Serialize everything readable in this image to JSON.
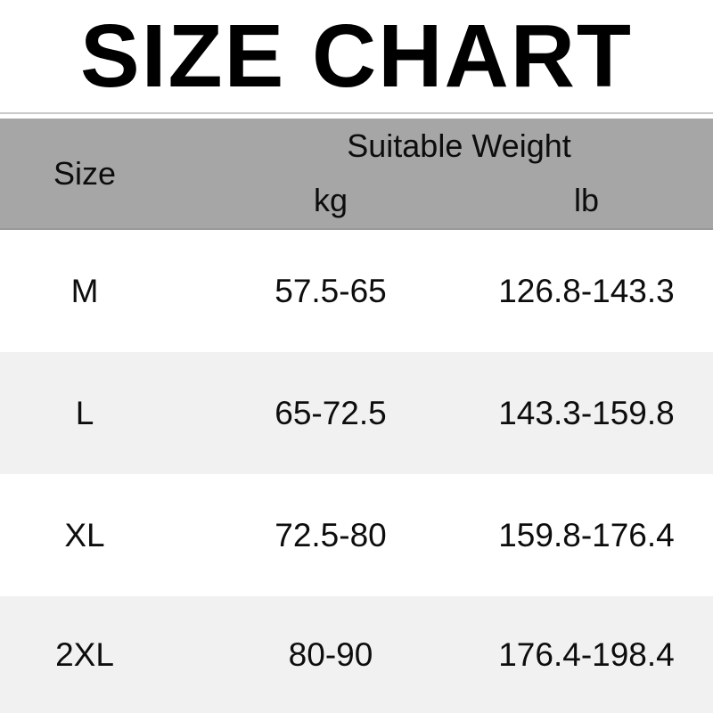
{
  "chart_data": {
    "type": "table",
    "title": "SIZE CHART",
    "column_groups": [
      {
        "label": "Suitable Weight",
        "columns": [
          "kg",
          "lb"
        ]
      }
    ],
    "columns": [
      "Size",
      "kg",
      "lb"
    ],
    "rows": [
      [
        "M",
        "57.5-65",
        "126.8-143.3"
      ],
      [
        "L",
        "65-72.5",
        "143.3-159.8"
      ],
      [
        "XL",
        "72.5-80",
        "159.8-176.4"
      ],
      [
        "2XL",
        "80-90",
        "176.4-198.4"
      ]
    ]
  },
  "colors": {
    "header_bg": "#a6a6a6",
    "row_alt_bg": "#f1f1f1",
    "row_bg": "#ffffff",
    "title_text": "#000000",
    "body_text": "#0d0d0d"
  }
}
